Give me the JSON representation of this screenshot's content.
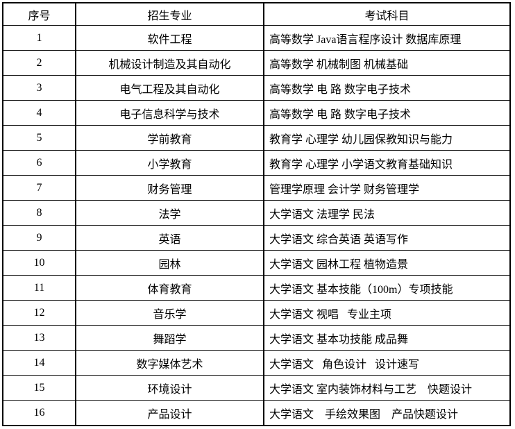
{
  "colors": {
    "background": "#ffffff",
    "border": "#000000",
    "text": "#000000"
  },
  "table": {
    "headers": [
      {
        "key": "no",
        "label": "序号"
      },
      {
        "key": "major",
        "label": "招生专业"
      },
      {
        "key": "subjects",
        "label": "考试科目"
      }
    ],
    "rows": [
      {
        "no": "1",
        "major": "软件工程",
        "subjects": "高等数学 Java语言程序设计 数据库原理"
      },
      {
        "no": "2",
        "major": "机械设计制造及其自动化",
        "subjects": "高等数学 机械制图 机械基础"
      },
      {
        "no": "3",
        "major": "电气工程及其自动化",
        "subjects": "高等数学 电 路 数字电子技术"
      },
      {
        "no": "4",
        "major": "电子信息科学与技术",
        "subjects": "高等数学 电 路 数字电子技术"
      },
      {
        "no": "5",
        "major": "学前教育",
        "subjects": "教育学 心理学 幼儿园保教知识与能力"
      },
      {
        "no": "6",
        "major": "小学教育",
        "subjects": "教育学 心理学 小学语文教育基础知识"
      },
      {
        "no": "7",
        "major": "财务管理",
        "subjects": "管理学原理 会计学 财务管理学"
      },
      {
        "no": "8",
        "major": "法学",
        "subjects": "大学语文 法理学 民法"
      },
      {
        "no": "9",
        "major": "英语",
        "subjects": "大学语文 综合英语 英语写作"
      },
      {
        "no": "10",
        "major": "园林",
        "subjects": "大学语文 园林工程 植物造景"
      },
      {
        "no": "11",
        "major": "体育教育",
        "subjects": "大学语文 基本技能（100m）专项技能"
      },
      {
        "no": "12",
        "major": "音乐学",
        "subjects": "大学语文 视唱   专业主项"
      },
      {
        "no": "13",
        "major": "舞蹈学",
        "subjects": "大学语文 基本功技能 成品舞"
      },
      {
        "no": "14",
        "major": "数字媒体艺术",
        "subjects": "大学语文   角色设计   设计速写"
      },
      {
        "no": "15",
        "major": "环境设计",
        "subjects": "大学语文 室内装饰材料与工艺    快题设计"
      },
      {
        "no": "16",
        "major": "产品设计",
        "subjects": "大学语文    手绘效果图    产品快题设计"
      }
    ]
  }
}
